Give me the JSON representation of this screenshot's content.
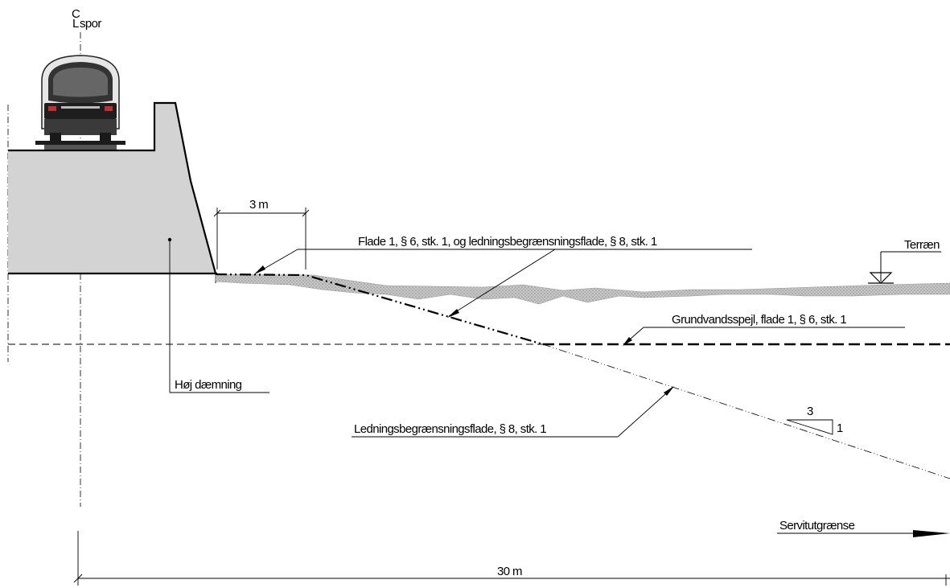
{
  "labels": {
    "centerline_symbol": "C",
    "centerline_suffix": "L",
    "centerline_track": "spor",
    "dim_3m": "3 m",
    "dim_30m": "30 m",
    "surface_1": "Flade 1, § 6, stk. 1, og ledningsbegrænsningsflade, § 8, stk. 1",
    "terrain": "Terræn",
    "groundwater": "Grundvandsspejl, flade 1, § 6, stk. 1",
    "embankment": "Høj dæmning",
    "cable_surface": "Ledningsbegrænsningsflade, § 8, stk. 1",
    "slope_rise": "3",
    "slope_run": "1",
    "easement": "Servitutgrænse"
  },
  "colors": {
    "embankment_fill": "#d3d3d3",
    "terrain_fill": "#b8b8b8",
    "line": "#000000"
  }
}
